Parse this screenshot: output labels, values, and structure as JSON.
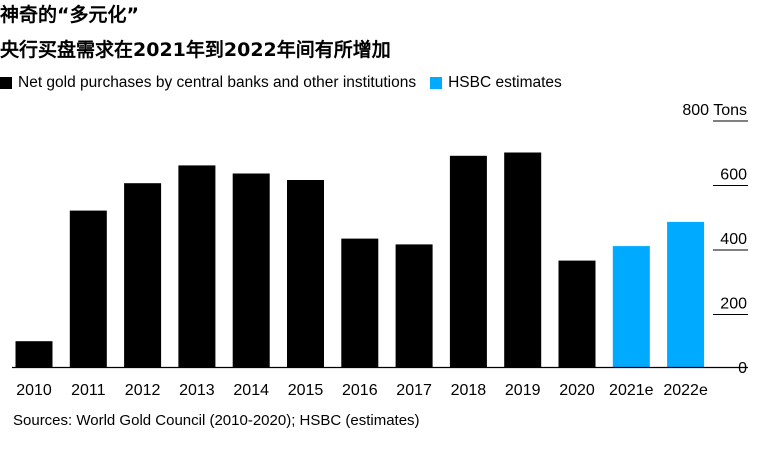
{
  "title_line1": "神奇的“多元化”",
  "title_line2": "央行买盘需求在2021年到2022年间有所增加",
  "legend": [
    {
      "label": "Net gold purchases by central banks and other institutions",
      "color": "#000000"
    },
    {
      "label": "HSBC estimates",
      "color": "#00aaff"
    }
  ],
  "source": "Sources: World Gold Council (2010-2020); HSBC (estimates)",
  "chart_data": {
    "type": "bar",
    "categories": [
      "2010",
      "2011",
      "2012",
      "2013",
      "2014",
      "2015",
      "2016",
      "2017",
      "2018",
      "2019",
      "2020",
      "2021e",
      "2022e"
    ],
    "values": [
      80,
      485,
      570,
      625,
      600,
      580,
      398,
      380,
      655,
      665,
      330,
      375,
      450
    ],
    "estimate": [
      false,
      false,
      false,
      false,
      false,
      false,
      false,
      false,
      false,
      false,
      false,
      true,
      true
    ],
    "colors": {
      "actual": "#000000",
      "estimate": "#00aaff"
    },
    "ylim": [
      0,
      800
    ],
    "yticks": [
      0,
      200,
      400,
      600,
      800
    ],
    "yunit": "Tons",
    "grid": false,
    "legend_position": "top-left"
  }
}
